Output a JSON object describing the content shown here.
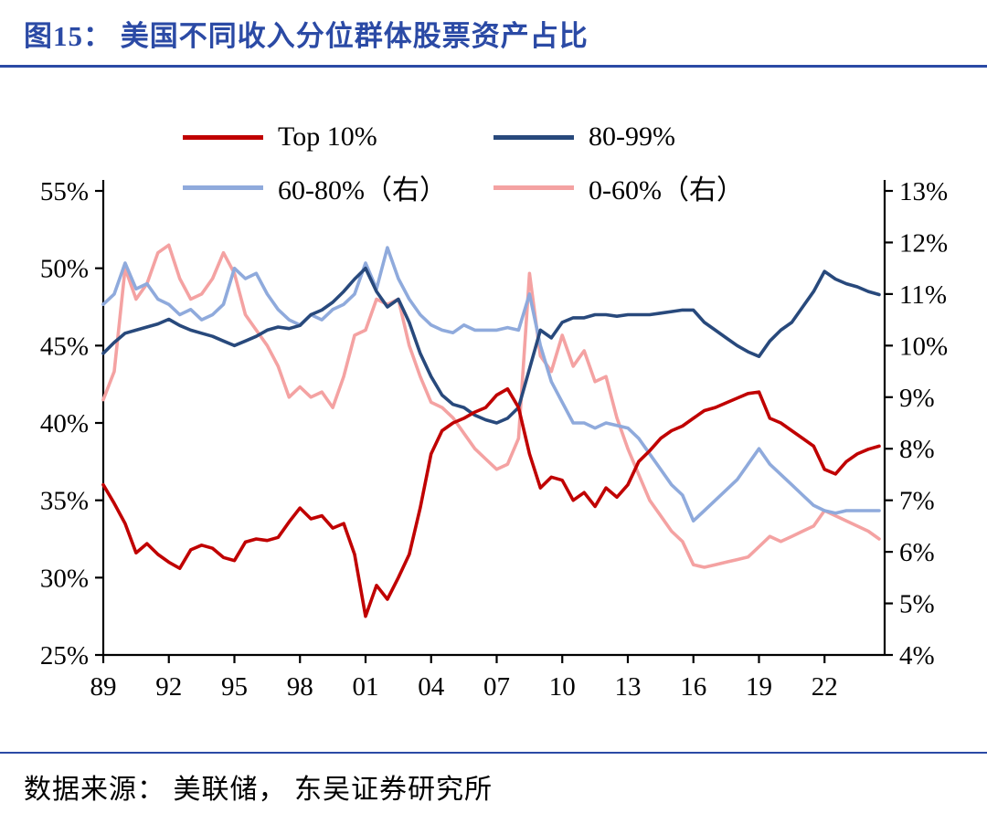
{
  "header": {
    "title": "图15： 美国不同收入分位群体股票资产占比"
  },
  "footer": {
    "source": "数据来源： 美联储， 东吴证券研究所"
  },
  "colors": {
    "accent_blue": "#2b4aa5",
    "axis": "#000000",
    "background": "#ffffff"
  },
  "chart_data": {
    "type": "line",
    "title": "美国不同收入分位群体股票资产占比",
    "grid": false,
    "legend_position": "top",
    "xlim": [
      1989,
      2024.75
    ],
    "x_ticks": {
      "values": [
        1989,
        1992,
        1995,
        1998,
        2001,
        2004,
        2007,
        2010,
        2013,
        2016,
        2019,
        2022
      ],
      "labels": [
        "89",
        "92",
        "95",
        "98",
        "01",
        "04",
        "07",
        "10",
        "13",
        "16",
        "19",
        "22"
      ]
    },
    "axes": {
      "left": {
        "min": 25,
        "max": 55,
        "tick_values": [
          25,
          30,
          35,
          40,
          45,
          50,
          55
        ],
        "tick_labels": [
          "25%",
          "30%",
          "35%",
          "40%",
          "45%",
          "50%",
          "55%"
        ]
      },
      "right": {
        "min": 4,
        "max": 13,
        "tick_values": [
          4,
          5,
          6,
          7,
          8,
          9,
          10,
          11,
          12,
          13
        ],
        "tick_labels": [
          "4%",
          "5%",
          "6%",
          "7%",
          "8%",
          "9%",
          "10%",
          "11%",
          "12%",
          "13%"
        ]
      }
    },
    "x": [
      1989,
      1989.5,
      1990,
      1990.5,
      1991,
      1991.5,
      1992,
      1992.5,
      1993,
      1993.5,
      1994,
      1994.5,
      1995,
      1995.5,
      1996,
      1996.5,
      1997,
      1997.5,
      1998,
      1998.5,
      1999,
      1999.5,
      2000,
      2000.5,
      2001,
      2001.5,
      2002,
      2002.5,
      2003,
      2003.5,
      2004,
      2004.5,
      2005,
      2005.5,
      2006,
      2006.5,
      2007,
      2007.5,
      2008,
      2008.5,
      2009,
      2009.5,
      2010,
      2010.5,
      2011,
      2011.5,
      2012,
      2012.5,
      2013,
      2013.5,
      2014,
      2014.5,
      2015,
      2015.5,
      2016,
      2016.5,
      2017,
      2017.5,
      2018,
      2018.5,
      2019,
      2019.5,
      2020,
      2020.5,
      2021,
      2021.5,
      2022,
      2022.5,
      2023,
      2023.5,
      2024,
      2024.5
    ],
    "series": [
      {
        "name": "Top 10%",
        "axis": "left",
        "color": "#c00000",
        "values": [
          36.0,
          34.8,
          33.5,
          31.6,
          32.2,
          31.5,
          31.0,
          30.6,
          31.8,
          32.1,
          31.9,
          31.3,
          31.1,
          32.3,
          32.5,
          32.4,
          32.6,
          33.6,
          34.5,
          33.8,
          34.0,
          33.2,
          33.5,
          31.5,
          27.5,
          29.5,
          28.6,
          30.0,
          31.5,
          34.5,
          38.0,
          39.5,
          40.0,
          40.3,
          40.7,
          41.0,
          41.8,
          42.2,
          41.0,
          38.0,
          35.8,
          36.5,
          36.3,
          35.0,
          35.5,
          34.6,
          35.8,
          35.2,
          36.0,
          37.5,
          38.2,
          39.0,
          39.5,
          39.8,
          40.3,
          40.8,
          41.0,
          41.3,
          41.6,
          41.9,
          42.0,
          40.3,
          40.0,
          39.5,
          39.0,
          38.5,
          37.0,
          36.7,
          37.5,
          38.0,
          38.3,
          38.5
        ]
      },
      {
        "name": "80-99%",
        "axis": "left",
        "color": "#28497c",
        "values": [
          44.5,
          45.2,
          45.8,
          46.0,
          46.2,
          46.4,
          46.7,
          46.3,
          46.0,
          45.8,
          45.6,
          45.3,
          45.0,
          45.3,
          45.6,
          46.0,
          46.2,
          46.1,
          46.3,
          47.0,
          47.3,
          47.8,
          48.5,
          49.3,
          50.0,
          48.5,
          47.5,
          48.0,
          46.5,
          44.5,
          43.0,
          41.8,
          41.2,
          41.0,
          40.5,
          40.2,
          40.0,
          40.3,
          41.0,
          43.5,
          46.0,
          45.5,
          46.5,
          46.8,
          46.8,
          47.0,
          47.0,
          46.9,
          47.0,
          47.0,
          47.0,
          47.1,
          47.2,
          47.3,
          47.3,
          46.5,
          46.0,
          45.5,
          45.0,
          44.6,
          44.3,
          45.3,
          46.0,
          46.5,
          47.5,
          48.5,
          49.8,
          49.3,
          49.0,
          48.8,
          48.5,
          48.3
        ]
      },
      {
        "name": "60-80%（右）",
        "axis": "right",
        "color": "#8faadc",
        "values": [
          10.8,
          11.0,
          11.6,
          11.1,
          11.2,
          10.9,
          10.8,
          10.6,
          10.7,
          10.5,
          10.6,
          10.8,
          11.5,
          11.3,
          11.4,
          11.0,
          10.7,
          10.5,
          10.4,
          10.6,
          10.5,
          10.7,
          10.8,
          11.0,
          11.6,
          11.1,
          11.9,
          11.3,
          10.9,
          10.6,
          10.4,
          10.3,
          10.25,
          10.4,
          10.3,
          10.3,
          10.3,
          10.35,
          10.3,
          11.0,
          10.0,
          9.3,
          8.9,
          8.5,
          8.5,
          8.4,
          8.5,
          8.45,
          8.4,
          8.2,
          7.9,
          7.6,
          7.3,
          7.1,
          6.6,
          6.8,
          7.0,
          7.2,
          7.4,
          7.7,
          8.0,
          7.7,
          7.5,
          7.3,
          7.1,
          6.9,
          6.8,
          6.75,
          6.8,
          6.8,
          6.8,
          6.8
        ]
      },
      {
        "name": "0-60%（右）",
        "axis": "right",
        "color": "#f4a2a2",
        "values": [
          8.95,
          9.5,
          11.5,
          10.9,
          11.2,
          11.8,
          11.95,
          11.3,
          10.9,
          11.0,
          11.3,
          11.8,
          11.4,
          10.6,
          10.3,
          10.0,
          9.6,
          9.0,
          9.2,
          9.0,
          9.1,
          8.8,
          9.4,
          10.2,
          10.3,
          10.9,
          10.8,
          10.9,
          10.0,
          9.4,
          8.9,
          8.8,
          8.6,
          8.3,
          8.0,
          7.8,
          7.6,
          7.7,
          8.2,
          11.4,
          9.8,
          9.5,
          10.2,
          9.6,
          9.9,
          9.3,
          9.4,
          8.6,
          8.0,
          7.5,
          7.0,
          6.7,
          6.4,
          6.2,
          5.75,
          5.7,
          5.75,
          5.8,
          5.85,
          5.9,
          6.1,
          6.3,
          6.2,
          6.3,
          6.4,
          6.5,
          6.8,
          6.7,
          6.6,
          6.5,
          6.4,
          6.25
        ]
      }
    ]
  }
}
